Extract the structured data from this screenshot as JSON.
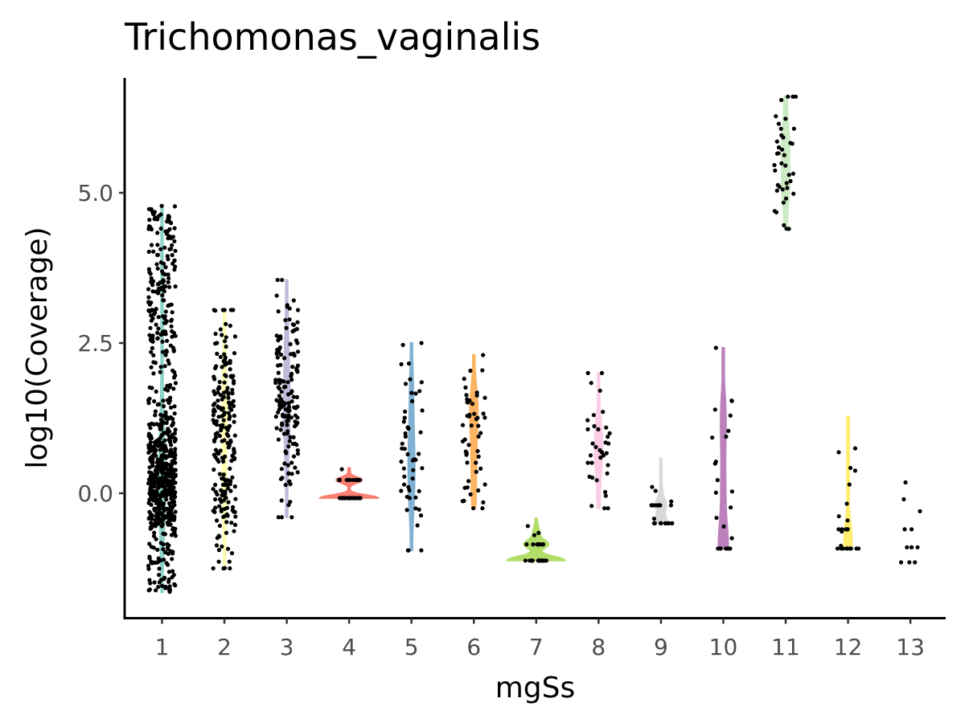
{
  "chart_data": {
    "type": "violin",
    "title": "Trichomonas_vaginalis",
    "xlabel": "mgSs",
    "ylabel": "log10(Coverage)",
    "ylim": [
      -2.05,
      6.95
    ],
    "categories": [
      "1",
      "2",
      "3",
      "4",
      "5",
      "6",
      "7",
      "8",
      "9",
      "10",
      "11",
      "12",
      "13"
    ],
    "yticks": [
      0.0,
      2.5,
      5.0
    ],
    "ytick_labels": [
      "0.0",
      "2.5",
      "5.0"
    ],
    "grid": false,
    "legend": "none",
    "series": [
      {
        "category": "1",
        "color": "#8DD3C7",
        "min": -1.65,
        "max": 4.8,
        "n": 700,
        "points_overlay": true
      },
      {
        "category": "2",
        "color": "#FFFFB3",
        "min": -1.25,
        "max": 3.05,
        "n": 220,
        "points_overlay": true
      },
      {
        "category": "3",
        "color": "#BEBADA",
        "min": -0.4,
        "max": 3.55,
        "n": 150,
        "points_overlay": true
      },
      {
        "category": "4",
        "color": "#FB8072",
        "min": -0.08,
        "max": 0.42,
        "n": 40,
        "points_overlay": true
      },
      {
        "category": "5",
        "color": "#80B1D3",
        "min": -0.95,
        "max": 2.5,
        "n": 50,
        "points_overlay": true
      },
      {
        "category": "6",
        "color": "#FDB462",
        "min": -0.25,
        "max": 2.3,
        "n": 50,
        "points_overlay": true
      },
      {
        "category": "7",
        "color": "#B3DE69",
        "min": -1.12,
        "max": -0.42,
        "n": 30,
        "points_overlay": true
      },
      {
        "category": "8",
        "color": "#FCCDE5",
        "min": -0.25,
        "max": 2.0,
        "n": 35,
        "points_overlay": true
      },
      {
        "category": "9",
        "color": "#D9D9D9",
        "min": -0.5,
        "max": 0.58,
        "n": 20,
        "points_overlay": true
      },
      {
        "category": "10",
        "color": "#BC80BD",
        "min": -0.92,
        "max": 2.42,
        "n": 25,
        "points_overlay": true
      },
      {
        "category": "11",
        "color": "#CCEBC5",
        "min": 4.4,
        "max": 6.6,
        "n": 40,
        "points_overlay": true
      },
      {
        "category": "12",
        "color": "#FFED6F",
        "min": -0.92,
        "max": 1.28,
        "n": 25,
        "points_overlay": true
      },
      {
        "category": "13",
        "color": "#8DD3C7",
        "min": -1.15,
        "max": 0.18,
        "n": 12,
        "points_overlay": false
      }
    ],
    "points_color": "#000000"
  }
}
